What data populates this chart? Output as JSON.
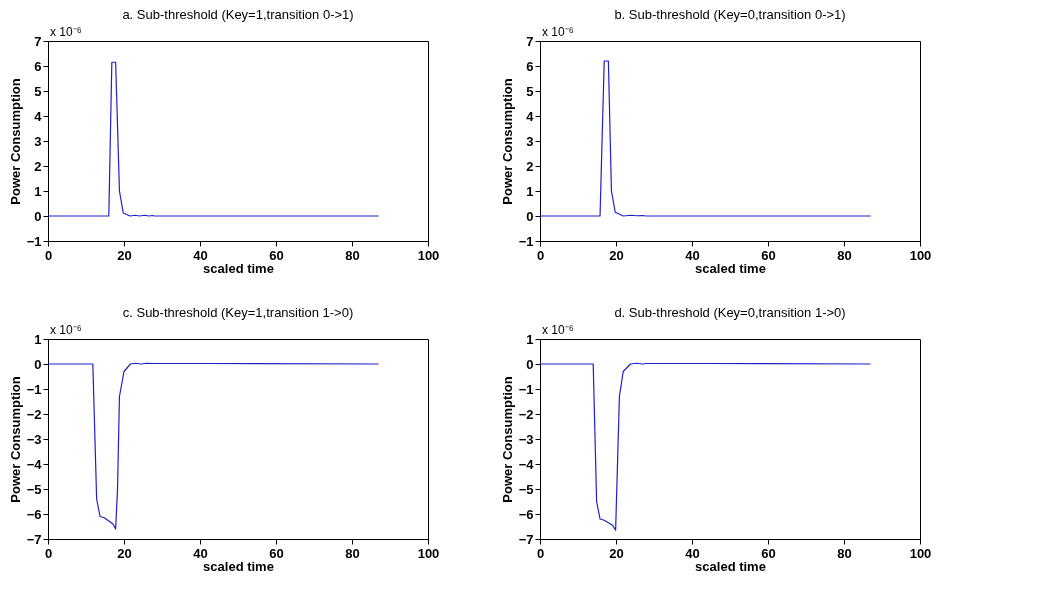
{
  "chart_data": [
    {
      "type": "line",
      "title": "a. Sub-threshold (Key=1,transition 0->1)",
      "xlabel": "scaled time",
      "ylabel": "Power Consumption",
      "annotations": [
        "x 10⁻⁶"
      ],
      "xlim": [
        0,
        100
      ],
      "xticks": [
        0,
        20,
        40,
        60,
        80,
        100
      ],
      "ylim": [
        -1,
        7
      ],
      "yticks": [
        -1,
        0,
        1,
        2,
        3,
        4,
        5,
        6,
        7
      ],
      "grid": false,
      "line_style": "solid",
      "marker": "none",
      "series": [
        {
          "color": "#2020c8",
          "x": [
            0,
            16,
            16.8,
            17.8,
            18.8,
            19.8,
            21.6,
            23,
            24,
            25.5,
            26.5,
            27.5,
            28,
            87
          ],
          "values": [
            0,
            0,
            6.15,
            6.15,
            1.0,
            0.12,
            0.0,
            0.03,
            0.0,
            0.03,
            0.0,
            0.02,
            0,
            0
          ]
        }
      ]
    },
    {
      "type": "line",
      "title": "b. Sub-threshold (Key=0,transition 0->1)",
      "xlabel": "scaled time",
      "ylabel": "Power Consumption",
      "annotations": [
        "x 10⁻⁶"
      ],
      "xlim": [
        0,
        100
      ],
      "xticks": [
        0,
        20,
        40,
        60,
        80,
        100
      ],
      "ylim": [
        -1,
        7
      ],
      "yticks": [
        -1,
        0,
        1,
        2,
        3,
        4,
        5,
        6,
        7
      ],
      "grid": false,
      "line_style": "solid",
      "marker": "none",
      "series": [
        {
          "color": "#2020c8",
          "x": [
            0,
            15.8,
            16.9,
            18,
            18.8,
            19.8,
            21.9,
            24,
            25.5,
            27,
            28,
            87
          ],
          "values": [
            0,
            0,
            6.2,
            6.2,
            1.0,
            0.15,
            0.0,
            0.03,
            0.01,
            0.02,
            0,
            0
          ]
        }
      ]
    },
    {
      "type": "line",
      "title": "c. Sub-threshold (Key=1,transition 1->0)",
      "xlabel": "scaled time",
      "ylabel": "Power Consumption",
      "annotations": [
        "x 10⁻⁶"
      ],
      "xlim": [
        0,
        100
      ],
      "xticks": [
        0,
        20,
        40,
        60,
        80,
        100
      ],
      "ylim": [
        -7,
        1
      ],
      "yticks": [
        -7,
        -6,
        -5,
        -4,
        -3,
        -2,
        -1,
        0,
        1
      ],
      "grid": false,
      "line_style": "solid",
      "marker": "none",
      "series": [
        {
          "color": "#2020c8",
          "x": [
            0,
            11.8,
            12.8,
            13.7,
            14.8,
            17.1,
            17.8,
            18.3,
            18.8,
            20,
            21.7,
            23,
            24.5,
            26,
            27.5,
            43,
            87
          ],
          "values": [
            0,
            0,
            -5.4,
            -6.1,
            -6.15,
            -6.4,
            -6.6,
            -5.0,
            -1.3,
            -0.3,
            0.0,
            0.03,
            0.0,
            0.03,
            0.02,
            0.02,
            0
          ]
        }
      ]
    },
    {
      "type": "line",
      "title": "d. Sub-threshold (Key=0,transition 1->0)",
      "xlabel": "scaled time",
      "ylabel": "Power Consumption",
      "annotations": [
        "x 10⁻⁶"
      ],
      "xlim": [
        0,
        100
      ],
      "xticks": [
        0,
        20,
        40,
        60,
        80,
        100
      ],
      "ylim": [
        -7,
        1
      ],
      "yticks": [
        -7,
        -6,
        -5,
        -4,
        -3,
        -2,
        -1,
        0,
        1
      ],
      "grid": false,
      "line_style": "solid",
      "marker": "none",
      "series": [
        {
          "color": "#2020c8",
          "x": [
            0,
            14,
            14.9,
            15.8,
            16.9,
            19.1,
            19.9,
            20.9,
            21.9,
            23.8,
            25.5,
            27,
            28,
            44,
            87
          ],
          "values": [
            0,
            0,
            -5.5,
            -6.2,
            -6.25,
            -6.45,
            -6.65,
            -1.3,
            -0.3,
            0.0,
            0.03,
            0.0,
            0.02,
            0.02,
            0
          ]
        }
      ]
    }
  ]
}
